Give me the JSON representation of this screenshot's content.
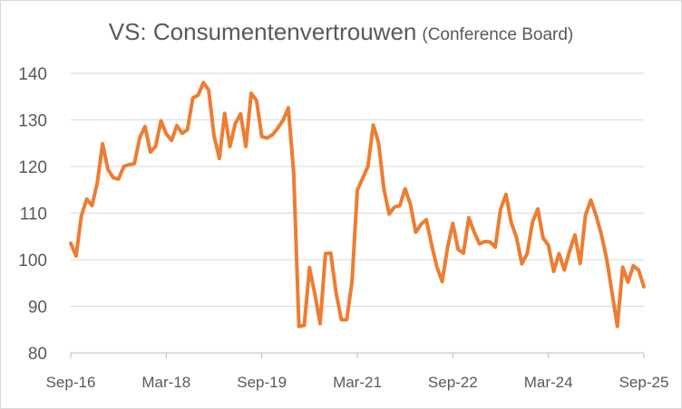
{
  "chart_data": {
    "type": "line",
    "title": "VS: Consumentenvertrouwen",
    "subtitle": "(Conference Board)",
    "xlabel": "",
    "ylabel": "",
    "ylim": [
      80,
      140
    ],
    "yticks": [
      80,
      90,
      100,
      110,
      120,
      130,
      140
    ],
    "xticks": [
      "Sep-16",
      "Mar-18",
      "Sep-19",
      "Mar-21",
      "Sep-22",
      "Mar-24",
      "Sep-25"
    ],
    "grid": "horizontal",
    "legend": "none",
    "line_color": "#ed7d31",
    "series": [
      {
        "values": [
          103.5,
          100.8,
          109.4,
          113.0,
          111.6,
          116.5,
          124.9,
          119.4,
          117.6,
          117.3,
          120.0,
          120.4,
          120.6,
          126.2,
          128.6,
          123.1,
          124.3,
          129.8,
          127.0,
          125.6,
          128.8,
          127.1,
          127.9,
          134.7,
          135.3,
          138.0,
          136.4,
          126.6,
          121.7,
          131.4,
          124.3,
          129.2,
          131.3,
          124.3,
          135.7,
          134.2,
          126.4,
          126.1,
          126.8,
          128.2,
          129.9,
          132.6,
          118.8,
          85.7,
          85.9,
          98.3,
          92.6,
          86.3,
          101.3,
          101.4,
          92.9,
          87.1,
          87.1,
          95.2,
          114.9,
          117.5,
          120.0,
          128.9,
          125.1,
          115.2,
          109.8,
          111.3,
          111.6,
          115.2,
          111.9,
          105.9,
          107.6,
          108.6,
          103.2,
          98.4,
          95.3,
          102.6,
          107.8,
          102.2,
          101.4,
          109.0,
          106.0,
          103.4,
          103.9,
          103.8,
          102.7,
          110.9,
          114.0,
          108.0,
          104.7,
          99.1,
          101.3,
          108.0,
          110.9,
          104.7,
          103.1,
          97.5,
          101.3,
          97.8,
          101.9,
          105.3,
          99.2,
          109.6,
          112.8,
          109.5,
          105.3,
          100.1,
          92.9,
          85.7,
          98.4,
          95.2,
          98.7,
          97.8,
          94.2
        ]
      }
    ]
  }
}
